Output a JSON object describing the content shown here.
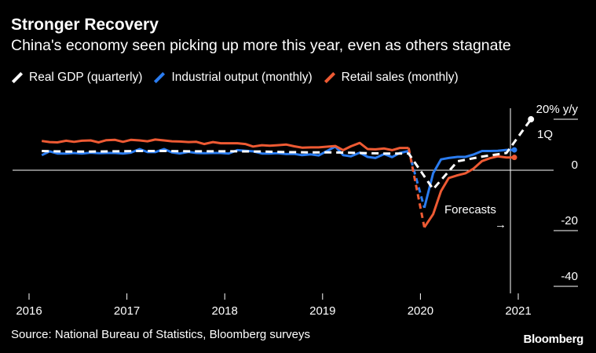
{
  "title": "Stronger Recovery",
  "subtitle": "China's economy seen picking up more this year, even as others stagnate",
  "legend": {
    "items": [
      {
        "label": "Real GDP (quarterly)",
        "color": "#ffffff"
      },
      {
        "label": "Industrial output (monthly)",
        "color": "#2a7cf0"
      },
      {
        "label": "Retail sales (monthly)",
        "color": "#ee5a33"
      }
    ]
  },
  "source": "Source: National Bureau of Statistics, Bloomberg surveys",
  "brand": "Bloomberg",
  "annotations": {
    "forecasts": "Forecasts",
    "forecasts_arrow": "→",
    "q1": "1Q"
  },
  "chart_data": {
    "type": "line",
    "ylabel": "",
    "y_unit_label": "20% y/y",
    "y_ticks": [
      20,
      0,
      -20,
      -40
    ],
    "y_tick_labels": [
      "20% y/y",
      "0",
      "-20",
      "-40"
    ],
    "ylim": [
      -48,
      24
    ],
    "x_ticks": [
      "2016",
      "2017",
      "2018",
      "2019",
      "2020",
      "2021"
    ],
    "xlim": [
      2016.0,
      2021.5
    ],
    "forecast_start": 2020.92,
    "series": [
      {
        "name": "Real GDP (quarterly)",
        "color": "#ffffff",
        "style": "dashed",
        "points": [
          [
            2016.13,
            6.9
          ],
          [
            2016.38,
            6.7
          ],
          [
            2016.63,
            6.7
          ],
          [
            2016.88,
            6.8
          ],
          [
            2017.13,
            6.9
          ],
          [
            2017.38,
            6.9
          ],
          [
            2017.63,
            6.8
          ],
          [
            2017.88,
            6.8
          ],
          [
            2018.13,
            6.8
          ],
          [
            2018.38,
            6.7
          ],
          [
            2018.63,
            6.5
          ],
          [
            2018.88,
            6.4
          ],
          [
            2019.13,
            6.4
          ],
          [
            2019.38,
            6.2
          ],
          [
            2019.63,
            6.0
          ],
          [
            2019.88,
            6.0
          ],
          [
            2020.13,
            -6.8
          ],
          [
            2020.38,
            3.2
          ],
          [
            2020.63,
            4.9
          ],
          [
            2020.88,
            6.2
          ],
          [
            2021.13,
            18.3
          ]
        ]
      },
      {
        "name": "Industrial output (monthly)",
        "color": "#2a7cf0",
        "style": "solid",
        "points": [
          [
            2016.13,
            5.4
          ],
          [
            2016.21,
            6.8
          ],
          [
            2016.29,
            6.0
          ],
          [
            2016.38,
            6.0
          ],
          [
            2016.46,
            6.2
          ],
          [
            2016.54,
            6.0
          ],
          [
            2016.63,
            6.3
          ],
          [
            2016.71,
            6.1
          ],
          [
            2016.79,
            6.2
          ],
          [
            2016.88,
            6.2
          ],
          [
            2016.96,
            6.0
          ],
          [
            2017.04,
            6.3
          ],
          [
            2017.13,
            7.6
          ],
          [
            2017.21,
            6.5
          ],
          [
            2017.29,
            6.5
          ],
          [
            2017.38,
            7.6
          ],
          [
            2017.46,
            6.4
          ],
          [
            2017.54,
            6.0
          ],
          [
            2017.63,
            6.6
          ],
          [
            2017.71,
            6.2
          ],
          [
            2017.79,
            6.1
          ],
          [
            2017.88,
            6.2
          ],
          [
            2017.96,
            6.2
          ],
          [
            2018.04,
            6.0
          ],
          [
            2018.13,
            7.2
          ],
          [
            2018.21,
            7.0
          ],
          [
            2018.29,
            6.8
          ],
          [
            2018.38,
            6.0
          ],
          [
            2018.46,
            6.0
          ],
          [
            2018.54,
            6.1
          ],
          [
            2018.63,
            5.8
          ],
          [
            2018.71,
            5.9
          ],
          [
            2018.79,
            5.4
          ],
          [
            2018.88,
            5.7
          ],
          [
            2018.96,
            5.3
          ],
          [
            2019.13,
            8.5
          ],
          [
            2019.21,
            5.4
          ],
          [
            2019.29,
            5.0
          ],
          [
            2019.38,
            6.3
          ],
          [
            2019.46,
            4.8
          ],
          [
            2019.54,
            4.4
          ],
          [
            2019.63,
            5.8
          ],
          [
            2019.71,
            4.7
          ],
          [
            2019.79,
            6.2
          ],
          [
            2019.88,
            6.9
          ],
          [
            2020.04,
            -13.5
          ],
          [
            2020.13,
            -1.1
          ],
          [
            2020.21,
            3.9
          ],
          [
            2020.29,
            4.4
          ],
          [
            2020.38,
            4.8
          ],
          [
            2020.46,
            4.8
          ],
          [
            2020.54,
            5.6
          ],
          [
            2020.63,
            6.9
          ],
          [
            2020.71,
            6.9
          ],
          [
            2020.79,
            7.0
          ],
          [
            2020.88,
            7.3
          ],
          [
            2020.96,
            7.3
          ]
        ]
      },
      {
        "name": "Retail sales (monthly)",
        "color": "#ee5a33",
        "style": "solid",
        "points": [
          [
            2016.13,
            10.5
          ],
          [
            2016.21,
            10.1
          ],
          [
            2016.29,
            10.0
          ],
          [
            2016.38,
            10.6
          ],
          [
            2016.46,
            10.2
          ],
          [
            2016.54,
            10.6
          ],
          [
            2016.63,
            10.7
          ],
          [
            2016.71,
            10.0
          ],
          [
            2016.79,
            10.8
          ],
          [
            2016.88,
            10.9
          ],
          [
            2016.96,
            10.2
          ],
          [
            2017.04,
            10.9
          ],
          [
            2017.13,
            10.7
          ],
          [
            2017.21,
            10.4
          ],
          [
            2017.29,
            11.0
          ],
          [
            2017.38,
            10.7
          ],
          [
            2017.46,
            10.4
          ],
          [
            2017.54,
            10.3
          ],
          [
            2017.63,
            10.1
          ],
          [
            2017.71,
            10.2
          ],
          [
            2017.79,
            9.4
          ],
          [
            2017.88,
            10.1
          ],
          [
            2017.96,
            9.7
          ],
          [
            2018.13,
            9.7
          ],
          [
            2018.21,
            9.4
          ],
          [
            2018.29,
            8.5
          ],
          [
            2018.38,
            9.0
          ],
          [
            2018.46,
            8.8
          ],
          [
            2018.54,
            9.0
          ],
          [
            2018.63,
            9.2
          ],
          [
            2018.71,
            8.6
          ],
          [
            2018.79,
            8.1
          ],
          [
            2018.88,
            8.2
          ],
          [
            2018.96,
            8.2
          ],
          [
            2019.13,
            8.7
          ],
          [
            2019.21,
            7.2
          ],
          [
            2019.29,
            8.6
          ],
          [
            2019.38,
            9.8
          ],
          [
            2019.46,
            7.6
          ],
          [
            2019.54,
            7.5
          ],
          [
            2019.63,
            7.8
          ],
          [
            2019.71,
            7.2
          ],
          [
            2019.79,
            8.0
          ],
          [
            2019.88,
            8.0
          ],
          [
            2020.04,
            -20.5
          ],
          [
            2020.13,
            -15.8
          ],
          [
            2020.21,
            -7.5
          ],
          [
            2020.29,
            -2.8
          ],
          [
            2020.38,
            -1.8
          ],
          [
            2020.46,
            -1.1
          ],
          [
            2020.54,
            0.5
          ],
          [
            2020.63,
            3.3
          ],
          [
            2020.71,
            4.3
          ],
          [
            2020.79,
            5.0
          ],
          [
            2020.88,
            4.6
          ],
          [
            2020.96,
            4.6
          ]
        ]
      }
    ]
  }
}
